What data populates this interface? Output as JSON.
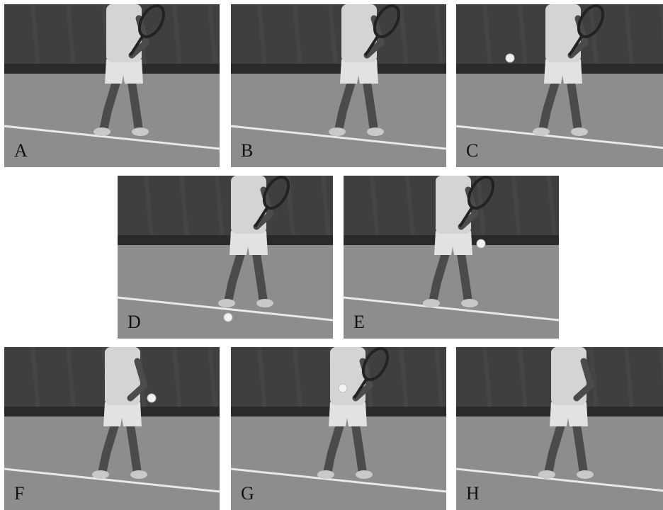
{
  "figure": {
    "panels": [
      {
        "label": "A",
        "ball": null
      },
      {
        "label": "B",
        "ball": null
      },
      {
        "label": "C",
        "ball": "air"
      },
      {
        "label": "D",
        "ball": "ground"
      },
      {
        "label": "E",
        "ball": "waist"
      },
      {
        "label": "F",
        "ball": "hand"
      },
      {
        "label": "G",
        "ball": "racket"
      },
      {
        "label": "H",
        "ball": null
      }
    ]
  },
  "colors": {
    "curtain": "#3f3f3f",
    "wall_base": "#2a2a2a",
    "court": "#8d8d8d",
    "court_line": "#e9e9e9",
    "skin": "#4b4b4b",
    "shirt": "#d4d4d4",
    "shorts": "#e2e2e2",
    "shoe": "#c9c9c9"
  }
}
